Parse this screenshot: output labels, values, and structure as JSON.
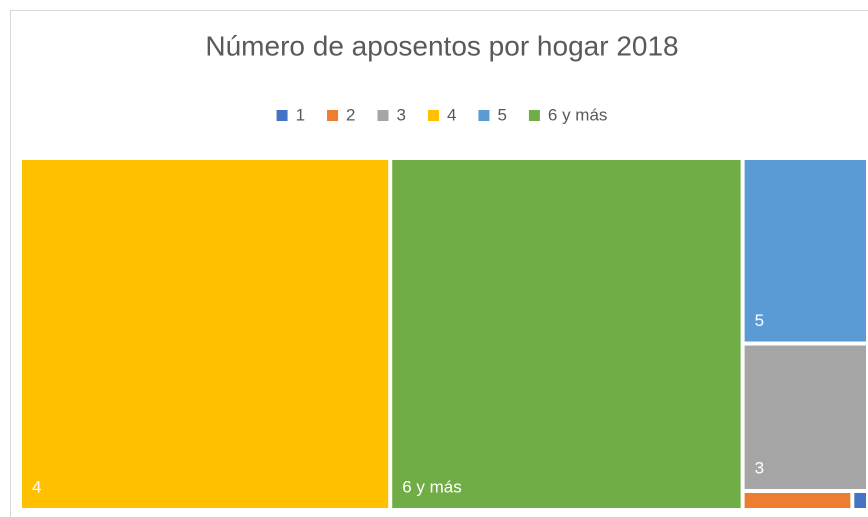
{
  "chart_data": {
    "type": "treemap",
    "title": "Número de aposentos por hogar 2018",
    "categories": [
      "1",
      "2",
      "3",
      "4",
      "5",
      "6 y más"
    ],
    "values": [
      0.1,
      0.7,
      6.2,
      43.7,
      7.8,
      41.6
    ],
    "colors": [
      "#4472c4",
      "#ed7d31",
      "#a5a5a5",
      "#ffc000",
      "#5b9bd5",
      "#70ad47"
    ],
    "legend": "top"
  }
}
